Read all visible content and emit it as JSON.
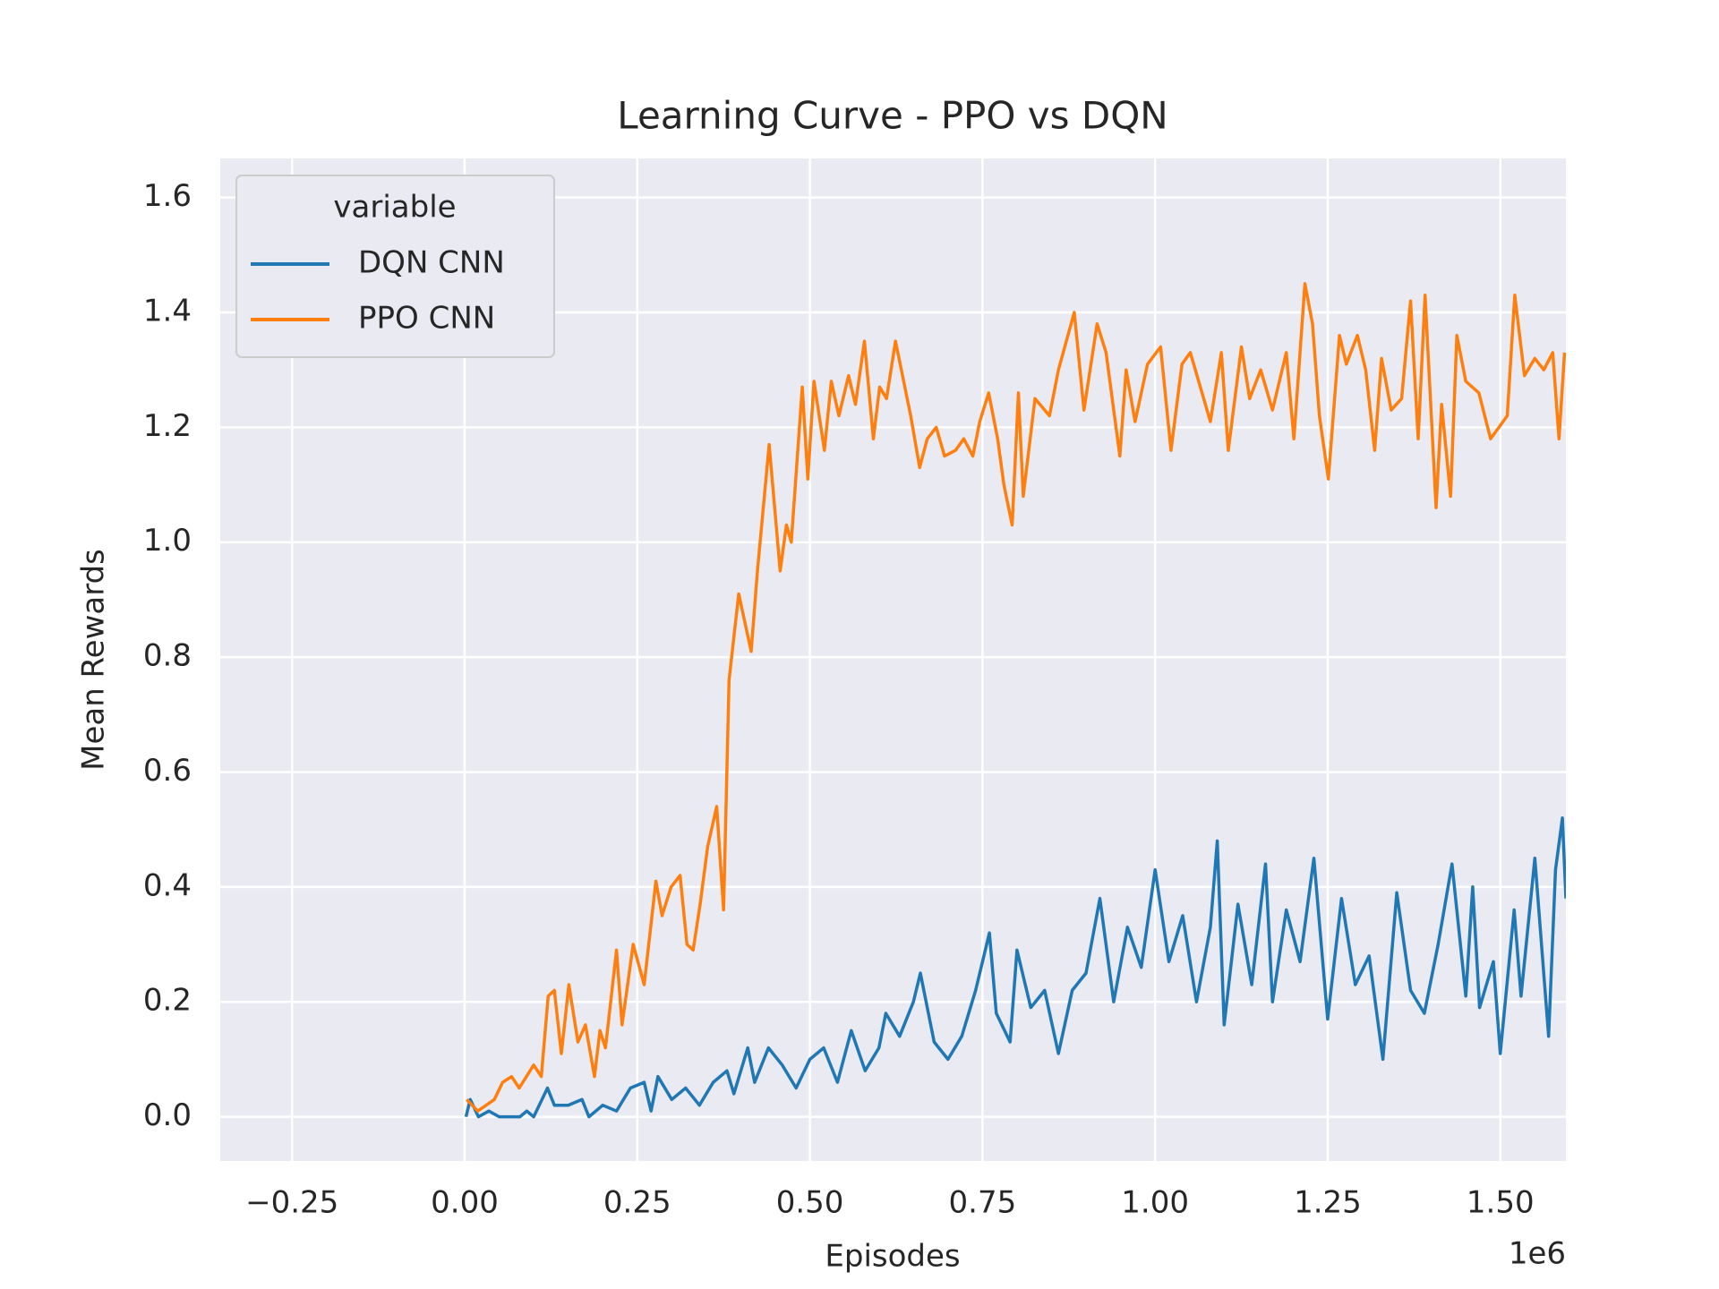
{
  "chart_data": {
    "type": "line",
    "title": "Learning Curve - PPO vs DQN",
    "xlabel": "Episodes",
    "ylabel": "Mean Rewards",
    "x_offset_label": "1e6",
    "legend_title": "variable",
    "legend_loc": "upper left",
    "grid": true,
    "xlim": [
      -0.354,
      1.595
    ],
    "ylim": [
      -0.077,
      1.668
    ],
    "xticks": [
      {
        "value": -0.25,
        "label": "−0.25"
      },
      {
        "value": 0,
        "label": "0.00"
      },
      {
        "value": 0.25,
        "label": "0.25"
      },
      {
        "value": 0.5,
        "label": "0.50"
      },
      {
        "value": 0.75,
        "label": "0.75"
      },
      {
        "value": 1,
        "label": "1.00"
      },
      {
        "value": 1.25,
        "label": "1.25"
      },
      {
        "value": 1.5,
        "label": "1.50"
      }
    ],
    "yticks": [
      {
        "value": 0,
        "label": "0.0"
      },
      0.2,
      0.4,
      0.6,
      0.8,
      {
        "value": 1,
        "label": "1.0"
      },
      1.2,
      1.4,
      1.6
    ],
    "series": [
      {
        "name": "DQN CNN",
        "color": "#1f77b4",
        "x": [
          0.002,
          0.008,
          0.02,
          0.035,
          0.05,
          0.08,
          0.09,
          0.1,
          0.12,
          0.13,
          0.15,
          0.17,
          0.18,
          0.2,
          0.22,
          0.24,
          0.26,
          0.27,
          0.28,
          0.3,
          0.32,
          0.34,
          0.36,
          0.38,
          0.39,
          0.41,
          0.42,
          0.44,
          0.46,
          0.48,
          0.5,
          0.52,
          0.54,
          0.56,
          0.58,
          0.6,
          0.61,
          0.63,
          0.65,
          0.66,
          0.68,
          0.7,
          0.72,
          0.74,
          0.76,
          0.77,
          0.79,
          0.8,
          0.82,
          0.84,
          0.86,
          0.88,
          0.9,
          0.92,
          0.94,
          0.96,
          0.98,
          1.0,
          1.02,
          1.04,
          1.06,
          1.08,
          1.09,
          1.1,
          1.12,
          1.14,
          1.16,
          1.17,
          1.19,
          1.21,
          1.23,
          1.25,
          1.27,
          1.29,
          1.31,
          1.33,
          1.35,
          1.37,
          1.39,
          1.41,
          1.43,
          1.45,
          1.46,
          1.47,
          1.49,
          1.5,
          1.52,
          1.53,
          1.55,
          1.57,
          1.58,
          1.59,
          1.595
        ],
        "values": [
          0.0,
          0.03,
          0.0,
          0.01,
          0.0,
          0.0,
          0.01,
          0.0,
          0.05,
          0.02,
          0.02,
          0.03,
          0.0,
          0.02,
          0.01,
          0.05,
          0.06,
          0.01,
          0.07,
          0.03,
          0.05,
          0.02,
          0.06,
          0.08,
          0.04,
          0.12,
          0.06,
          0.12,
          0.09,
          0.05,
          0.1,
          0.12,
          0.06,
          0.15,
          0.08,
          0.12,
          0.18,
          0.14,
          0.2,
          0.25,
          0.13,
          0.1,
          0.14,
          0.22,
          0.32,
          0.18,
          0.13,
          0.29,
          0.19,
          0.22,
          0.11,
          0.22,
          0.25,
          0.38,
          0.2,
          0.33,
          0.26,
          0.43,
          0.27,
          0.35,
          0.2,
          0.33,
          0.48,
          0.16,
          0.37,
          0.23,
          0.44,
          0.2,
          0.36,
          0.27,
          0.45,
          0.17,
          0.38,
          0.23,
          0.28,
          0.1,
          0.39,
          0.22,
          0.18,
          0.3,
          0.44,
          0.21,
          0.4,
          0.19,
          0.27,
          0.11,
          0.36,
          0.21,
          0.45,
          0.14,
          0.43,
          0.52,
          0.38
        ]
      },
      {
        "name": "PPO CNN",
        "color": "#ff7f0e",
        "x": [
          0.003,
          0.019,
          0.043,
          0.055,
          0.068,
          0.079,
          0.1,
          0.111,
          0.121,
          0.13,
          0.14,
          0.151,
          0.164,
          0.175,
          0.188,
          0.196,
          0.204,
          0.22,
          0.228,
          0.244,
          0.26,
          0.277,
          0.286,
          0.299,
          0.312,
          0.322,
          0.331,
          0.341,
          0.352,
          0.365,
          0.375,
          0.383,
          0.397,
          0.415,
          0.424,
          0.441,
          0.457,
          0.466,
          0.473,
          0.489,
          0.497,
          0.506,
          0.521,
          0.531,
          0.542,
          0.556,
          0.566,
          0.579,
          0.592,
          0.601,
          0.611,
          0.624,
          0.646,
          0.659,
          0.67,
          0.683,
          0.695,
          0.711,
          0.723,
          0.736,
          0.746,
          0.759,
          0.772,
          0.781,
          0.793,
          0.802,
          0.809,
          0.826,
          0.847,
          0.86,
          0.883,
          0.897,
          0.916,
          0.929,
          0.949,
          0.958,
          0.971,
          0.989,
          1.008,
          1.023,
          1.039,
          1.051,
          1.068,
          1.08,
          1.096,
          1.106,
          1.125,
          1.137,
          1.153,
          1.17,
          1.19,
          1.201,
          1.217,
          1.228,
          1.238,
          1.251,
          1.267,
          1.277,
          1.293,
          1.305,
          1.318,
          1.328,
          1.342,
          1.357,
          1.37,
          1.381,
          1.391,
          1.407,
          1.415,
          1.428,
          1.437,
          1.45,
          1.469,
          1.486,
          1.498,
          1.51,
          1.521,
          1.535,
          1.55,
          1.563,
          1.576,
          1.585,
          1.593
        ],
        "values": [
          0.03,
          0.01,
          0.03,
          0.06,
          0.07,
          0.05,
          0.09,
          0.07,
          0.21,
          0.22,
          0.11,
          0.23,
          0.13,
          0.16,
          0.07,
          0.15,
          0.12,
          0.29,
          0.16,
          0.3,
          0.23,
          0.41,
          0.35,
          0.4,
          0.42,
          0.3,
          0.29,
          0.37,
          0.47,
          0.54,
          0.36,
          0.76,
          0.91,
          0.81,
          0.95,
          1.17,
          0.95,
          1.03,
          1.0,
          1.27,
          1.11,
          1.28,
          1.16,
          1.28,
          1.22,
          1.29,
          1.24,
          1.35,
          1.18,
          1.27,
          1.25,
          1.35,
          1.22,
          1.13,
          1.18,
          1.2,
          1.15,
          1.16,
          1.18,
          1.15,
          1.21,
          1.26,
          1.18,
          1.1,
          1.03,
          1.26,
          1.08,
          1.25,
          1.22,
          1.3,
          1.4,
          1.23,
          1.38,
          1.33,
          1.15,
          1.3,
          1.21,
          1.31,
          1.34,
          1.16,
          1.31,
          1.33,
          1.26,
          1.21,
          1.33,
          1.16,
          1.34,
          1.25,
          1.3,
          1.23,
          1.33,
          1.18,
          1.45,
          1.38,
          1.22,
          1.11,
          1.36,
          1.31,
          1.36,
          1.3,
          1.16,
          1.32,
          1.23,
          1.25,
          1.42,
          1.18,
          1.43,
          1.06,
          1.24,
          1.08,
          1.36,
          1.28,
          1.26,
          1.18,
          1.2,
          1.22,
          1.43,
          1.29,
          1.32,
          1.3,
          1.33,
          1.18,
          1.33
        ]
      }
    ]
  }
}
